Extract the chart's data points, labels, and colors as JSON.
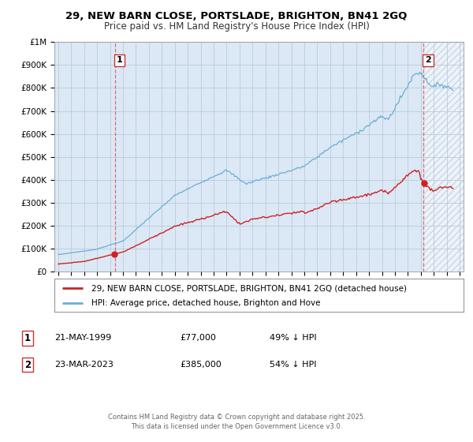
{
  "title": "29, NEW BARN CLOSE, PORTSLADE, BRIGHTON, BN41 2GQ",
  "subtitle": "Price paid vs. HM Land Registry's House Price Index (HPI)",
  "fig_facecolor": "#ffffff",
  "plot_bg_color": "#dce8f5",
  "grid_color": "#b8ccdc",
  "hpi_color": "#6baed6",
  "price_color": "#cc2222",
  "marker_color": "#cc2222",
  "vline_color": "#e05050",
  "annotation_border_color": "#cc3333",
  "hatch_color": "#c0ccd8",
  "legend_label_price": "29, NEW BARN CLOSE, PORTSLADE, BRIGHTON, BN41 2GQ (detached house)",
  "legend_label_hpi": "HPI: Average price, detached house, Brighton and Hove",
  "transaction1_x": 1999.38,
  "transaction1_y_price": 77000,
  "transaction2_x": 2023.22,
  "transaction2_y_price": 385000,
  "ylim": [
    0,
    1000000
  ],
  "xlim_start": 1994.7,
  "xlim_end": 2026.3,
  "footer": "Contains HM Land Registry data © Crown copyright and database right 2025.\nThis data is licensed under the Open Government Licence v3.0.",
  "yticks": [
    0,
    100000,
    200000,
    300000,
    400000,
    500000,
    600000,
    700000,
    800000,
    900000,
    1000000
  ],
  "ytick_labels": [
    "£0",
    "£100K",
    "£200K",
    "£300K",
    "£400K",
    "£500K",
    "£600K",
    "£700K",
    "£800K",
    "£900K",
    "£1M"
  ],
  "transaction1_date": "21-MAY-1999",
  "transaction1_price": "£77,000",
  "transaction1_hpi_text": "49% ↓ HPI",
  "transaction2_date": "23-MAR-2023",
  "transaction2_price": "£385,000",
  "transaction2_hpi_text": "54% ↓ HPI"
}
